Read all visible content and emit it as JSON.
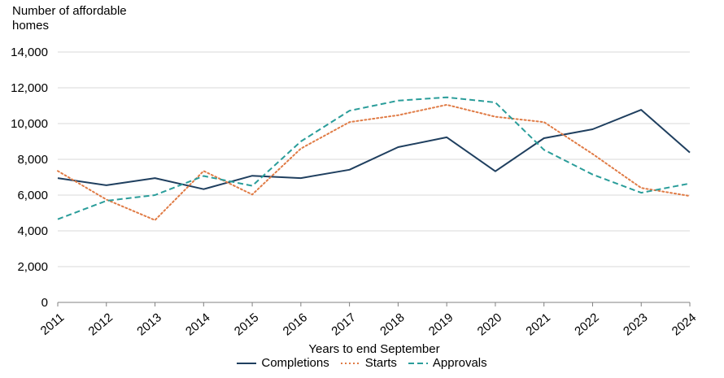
{
  "chart_data": {
    "type": "line",
    "ylabel_lines": [
      "Number of affordable",
      "homes"
    ],
    "xlabel": "Years to end September",
    "x": [
      "2011",
      "2012",
      "2013",
      "2014",
      "2015",
      "2016",
      "2017",
      "2018",
      "2019",
      "2020",
      "2021",
      "2022",
      "2023",
      "2024"
    ],
    "ylim": [
      0,
      14000
    ],
    "yticks": [
      0,
      2000,
      4000,
      6000,
      8000,
      10000,
      12000,
      14000
    ],
    "ytick_labels": [
      "0",
      "2,000",
      "4,000",
      "6,000",
      "8,000",
      "10,000",
      "12,000",
      "14,000"
    ],
    "grid": "horizontal",
    "legend_position": "bottom",
    "series": [
      {
        "name": "Completions",
        "style": "solid",
        "color": "#1f3f5f",
        "values": [
          6950,
          6550,
          6950,
          6330,
          7080,
          6950,
          7420,
          8680,
          9230,
          7330,
          9180,
          9680,
          10770,
          8380
        ]
      },
      {
        "name": "Starts",
        "style": "dotted",
        "color": "#e07b45",
        "values": [
          7350,
          5750,
          4600,
          7350,
          6030,
          8600,
          10080,
          10470,
          11050,
          10380,
          10080,
          8300,
          6400,
          5950
        ]
      },
      {
        "name": "Approvals",
        "style": "dashed",
        "color": "#2a9d9a",
        "values": [
          4650,
          5680,
          6000,
          7070,
          6520,
          9000,
          10720,
          11280,
          11470,
          11180,
          8530,
          7150,
          6130,
          6650
        ]
      }
    ]
  }
}
